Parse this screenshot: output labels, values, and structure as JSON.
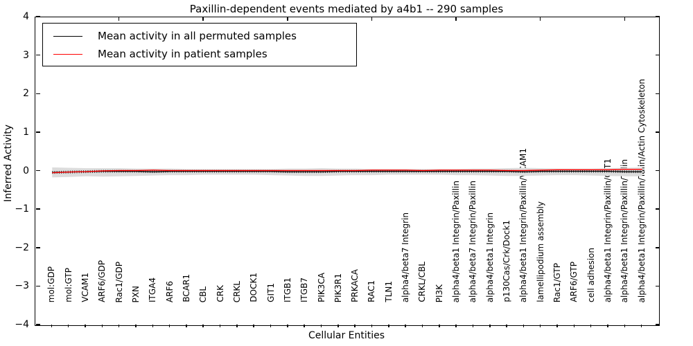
{
  "figure": {
    "background": "#ffffff"
  },
  "chart_data": {
    "type": "line",
    "title": "Paxillin-dependent events mediated by a4b1 -- 290 samples",
    "xlabel": "Cellular Entities",
    "ylabel": "Inferred Activity",
    "ylim": [
      -4,
      4
    ],
    "ytick_labels": [
      "4",
      "3",
      "2",
      "1",
      "0",
      "−1",
      "−2",
      "−3",
      "−4"
    ],
    "ytick_values": [
      4,
      3,
      2,
      1,
      0,
      -1,
      -2,
      -3,
      -4
    ],
    "grid": false,
    "legend_position": "upper left",
    "categories": [
      "mol:GDP",
      "mol:GTP",
      "VCAM1",
      "ARF6/GDP",
      "Rac1/GDP",
      "PXN",
      "ITGA4",
      "ARF6",
      "BCAR1",
      "CBL",
      "CRK",
      "CRKL",
      "DOCK1",
      "GIT1",
      "ITGB1",
      "ITGB7",
      "PIK3CA",
      "PIK3R1",
      "PRKACA",
      "RAC1",
      "TLN1",
      "alpha4/beta7 Integrin",
      "CRKL/CBL",
      "PI3K",
      "alpha4/beta1 Integrin/Paxillin",
      "alpha4/beta7 Integrin/Paxillin",
      "alpha4/beta1 Integrin",
      "p130Cas/Crk/Dock1",
      "alpha4/beta1 Integrin/Paxillin/VCAM1",
      "lamellipodium assembly",
      "Rac1/GTP",
      "ARF6/GTP",
      "cell adhesion",
      "alpha4/beta1 Integrin/Paxillin/GIT1",
      "alpha4/beta1 Integrin/Paxillin/Talin",
      "alpha4/beta1 Integrin/Paxillin/Talin/Actin Cytoskeleton"
    ],
    "series": [
      {
        "name": "Mean activity in all permuted samples",
        "color": "#000000",
        "values": [
          -0.03,
          -0.02,
          -0.01,
          0,
          0,
          0,
          -0.01,
          0,
          0,
          0,
          0,
          0,
          0,
          0,
          -0.01,
          -0.01,
          -0.01,
          0,
          0,
          0,
          0,
          0,
          0,
          0,
          0,
          0,
          0,
          0,
          -0.01,
          0,
          0,
          0,
          0,
          0,
          -0.01,
          -0.01
        ]
      },
      {
        "name": "Mean activity in patient samples",
        "color": "#ff0000",
        "values": [
          -0.04,
          -0.02,
          -0.01,
          0.01,
          0.02,
          0.02,
          0.03,
          0.02,
          0.02,
          0.02,
          0.02,
          0.02,
          0.02,
          0.02,
          0.02,
          0.02,
          0.02,
          0.02,
          0.02,
          0.03,
          0.03,
          0.03,
          0.02,
          0.03,
          0.03,
          0.03,
          0.03,
          0.02,
          0.02,
          0.03,
          0.04,
          0.04,
          0.04,
          0.04,
          0.05,
          0.05
        ]
      }
    ],
    "band": {
      "name": "permuted-samples-spread",
      "color": "#dcdcdc",
      "upper": [
        0.1,
        0.09,
        0.08,
        0.08,
        0.08,
        0.07,
        0.07,
        0.07,
        0.06,
        0.06,
        0.06,
        0.06,
        0.06,
        0.06,
        0.07,
        0.07,
        0.08,
        0.07,
        0.07,
        0.06,
        0.06,
        0.06,
        0.06,
        0.06,
        0.06,
        0.07,
        0.07,
        0.08,
        0.09,
        0.08,
        0.07,
        0.07,
        0.07,
        0.08,
        0.09,
        0.1
      ],
      "lower": [
        -0.16,
        -0.15,
        -0.13,
        -0.14,
        -0.13,
        -0.12,
        -0.11,
        -0.1,
        -0.1,
        -0.09,
        -0.09,
        -0.09,
        -0.09,
        -0.1,
        -0.11,
        -0.12,
        -0.12,
        -0.11,
        -0.1,
        -0.1,
        -0.09,
        -0.09,
        -0.09,
        -0.09,
        -0.1,
        -0.1,
        -0.11,
        -0.12,
        -0.12,
        -0.11,
        -0.1,
        -0.1,
        -0.11,
        -0.12,
        -0.13,
        -0.13
      ]
    }
  },
  "legend": {
    "items": [
      {
        "label": "Mean activity in all permuted samples",
        "color": "#000000"
      },
      {
        "label": "Mean activity in patient samples",
        "color": "#ff0000"
      }
    ]
  }
}
